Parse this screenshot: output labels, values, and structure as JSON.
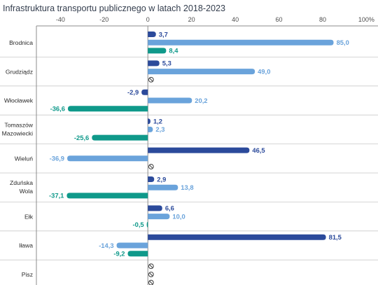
{
  "chart_data": {
    "type": "bar",
    "orientation": "horizontal",
    "title": "Infrastruktura transportu publicznego w latach 2018-2023",
    "xlabel": "",
    "ylabel": "",
    "x_ticks": [
      "-40",
      "-20",
      "0",
      "20",
      "40",
      "60",
      "80",
      "100%"
    ],
    "xlim": [
      -51,
      105
    ],
    "grid": false,
    "legend": "none",
    "categories": [
      "Brodnica",
      "Grudziądz",
      "Włocławek",
      "Tomaszów Mazowiecki",
      "Wieluń",
      "Zduńska Wola",
      "Ełk",
      "Iława",
      "Pisz"
    ],
    "series": [
      {
        "color": "#2b4a9b",
        "values": [
          3.7,
          5.3,
          -2.9,
          1.2,
          46.5,
          2.9,
          6.6,
          81.5,
          null
        ],
        "labels": [
          "3,7",
          "5,3",
          "-2,9",
          "1,2",
          "46,5",
          "2,9",
          "6,6",
          "81,5",
          null
        ]
      },
      {
        "color": "#6aa3db",
        "values": [
          85.0,
          49.0,
          20.2,
          2.3,
          -36.9,
          13.8,
          10.0,
          -14.3,
          null
        ],
        "labels": [
          "85,0",
          "49,0",
          "20,2",
          "2,3",
          "-36,9",
          "13,8",
          "10,0",
          "-14,3",
          null
        ]
      },
      {
        "color": "#0f998a",
        "values": [
          8.4,
          null,
          -36.6,
          -25.6,
          null,
          -37.1,
          -0.5,
          -9.2,
          null
        ],
        "labels": [
          "8,4",
          null,
          "-36,6",
          "-25,6",
          null,
          "-37,1",
          "-0,5",
          "-9,2",
          null
        ]
      }
    ],
    "missing_value_icon": "no-data-icon"
  },
  "colors": {
    "title": "#333d4d",
    "tick_text": "#4d4d4d",
    "category_text": "#2a2a2a",
    "axis": "#8c8c8c",
    "separator": "#c9c9c9",
    "no_data_icon": "#4a4a4a"
  }
}
